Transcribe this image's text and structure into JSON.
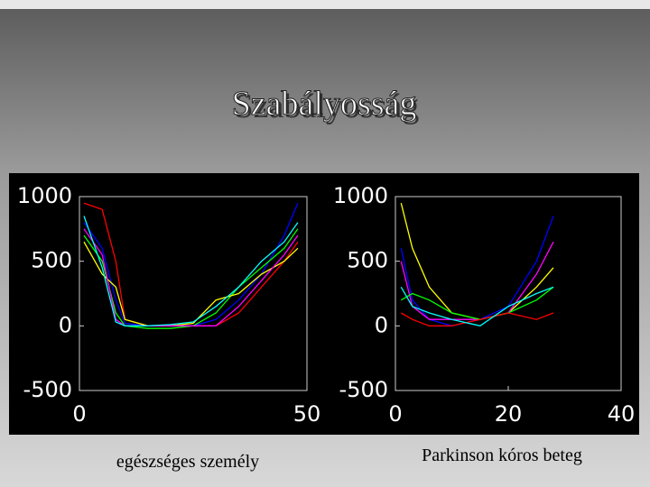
{
  "slide_title": "Szabályosság",
  "chart_data": [
    {
      "type": "line",
      "caption": "egészséges személy",
      "xlim": [
        0,
        50
      ],
      "xticks": [
        0,
        50
      ],
      "ylim": [
        -500,
        1000
      ],
      "yticks": [
        -500,
        0,
        500,
        1000
      ],
      "x": [
        1,
        5,
        8,
        10,
        15,
        20,
        25,
        30,
        35,
        40,
        45,
        48
      ],
      "series": [
        {
          "color": "#ff0000",
          "values": [
            950,
            900,
            500,
            50,
            0,
            0,
            0,
            0,
            100,
            300,
            500,
            650
          ]
        },
        {
          "color": "#0000ff",
          "values": [
            800,
            600,
            200,
            20,
            0,
            0,
            0,
            50,
            200,
            400,
            700,
            950
          ]
        },
        {
          "color": "#00ff00",
          "values": [
            700,
            500,
            100,
            0,
            -20,
            -20,
            0,
            100,
            300,
            450,
            600,
            750
          ]
        },
        {
          "color": "#ffff00",
          "values": [
            650,
            400,
            300,
            50,
            0,
            0,
            20,
            200,
            250,
            400,
            500,
            600
          ]
        },
        {
          "color": "#ff00ff",
          "values": [
            750,
            550,
            50,
            0,
            0,
            0,
            0,
            0,
            150,
            350,
            550,
            700
          ]
        },
        {
          "color": "#00ffff",
          "values": [
            850,
            450,
            30,
            0,
            0,
            10,
            30,
            150,
            300,
            500,
            650,
            800
          ]
        }
      ]
    },
    {
      "type": "line",
      "caption": "Parkinson kóros beteg",
      "xlim": [
        0,
        40
      ],
      "xticks": [
        0,
        20,
        40
      ],
      "ylim": [
        -500,
        1000
      ],
      "yticks": [
        -500,
        0,
        500,
        1000
      ],
      "x": [
        1,
        3,
        6,
        10,
        15,
        20,
        25,
        28
      ],
      "series": [
        {
          "color": "#ffff00",
          "values": [
            950,
            600,
            300,
            100,
            50,
            100,
            300,
            450
          ]
        },
        {
          "color": "#0000ff",
          "values": [
            600,
            200,
            50,
            0,
            50,
            150,
            500,
            850
          ]
        },
        {
          "color": "#ff00ff",
          "values": [
            500,
            150,
            50,
            50,
            50,
            100,
            400,
            650
          ]
        },
        {
          "color": "#00ff00",
          "values": [
            200,
            250,
            200,
            100,
            50,
            100,
            200,
            300
          ]
        },
        {
          "color": "#ff0000",
          "values": [
            100,
            50,
            0,
            0,
            50,
            100,
            50,
            100
          ]
        },
        {
          "color": "#00ffff",
          "values": [
            300,
            150,
            100,
            50,
            0,
            150,
            250,
            300
          ]
        }
      ]
    }
  ]
}
